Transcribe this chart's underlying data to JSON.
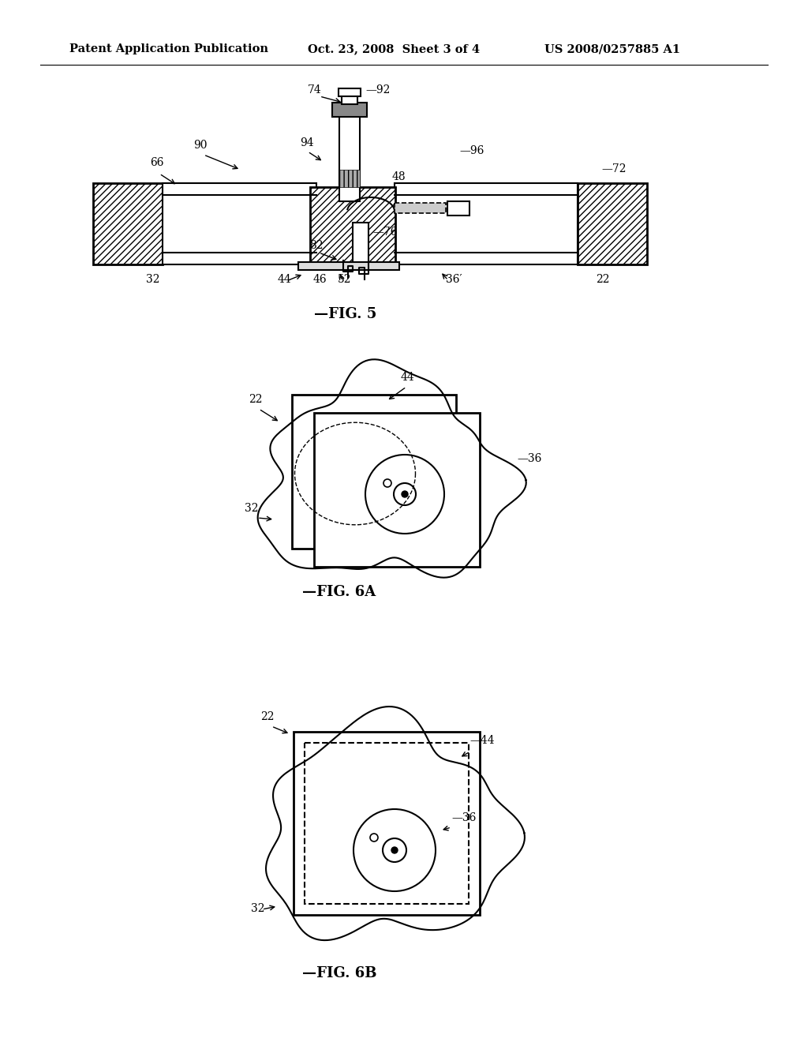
{
  "header_left": "Patent Application Publication",
  "header_center": "Oct. 23, 2008  Sheet 3 of 4",
  "header_right": "US 2008/0257885 A1",
  "bg_color": "#ffffff",
  "line_color": "#000000"
}
